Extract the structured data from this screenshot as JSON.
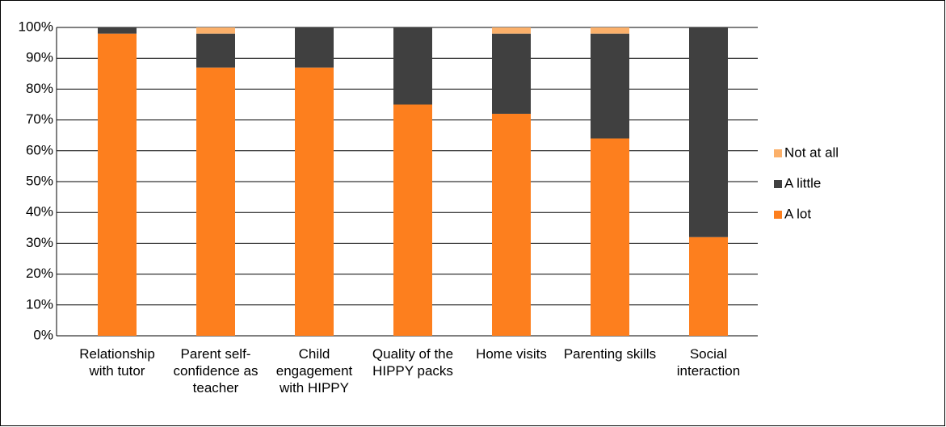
{
  "chart_data": {
    "type": "stacked_bar",
    "categories": [
      "Relationship with tutor",
      "Parent self-confidence as teacher",
      "Child engagement with HIPPY",
      "Quality of the HIPPY packs",
      "Home visits",
      "Parenting skills",
      "Social interaction"
    ],
    "series": [
      {
        "name": "A lot",
        "color": "#fd7f1e",
        "values": [
          98,
          87,
          87,
          75,
          72,
          64,
          32
        ]
      },
      {
        "name": "A little",
        "color": "#404040",
        "values": [
          2,
          11,
          13,
          25,
          26,
          34,
          68
        ]
      },
      {
        "name": "Not at all",
        "color": "#fbb06a",
        "values": [
          0,
          2,
          0,
          0,
          2,
          2,
          0
        ]
      }
    ],
    "ylim": [
      0,
      100
    ],
    "yticks": [
      {
        "value": 0,
        "label": "0%"
      },
      {
        "value": 10,
        "label": "10%"
      },
      {
        "value": 20,
        "label": "20%"
      },
      {
        "value": 30,
        "label": "30%"
      },
      {
        "value": 40,
        "label": "40%"
      },
      {
        "value": 50,
        "label": "50%"
      },
      {
        "value": 60,
        "label": "60%"
      },
      {
        "value": 70,
        "label": "70%"
      },
      {
        "value": 80,
        "label": "80%"
      },
      {
        "value": 90,
        "label": "90%"
      },
      {
        "value": 100,
        "label": "100%"
      }
    ],
    "grid": true,
    "legend": "right"
  }
}
